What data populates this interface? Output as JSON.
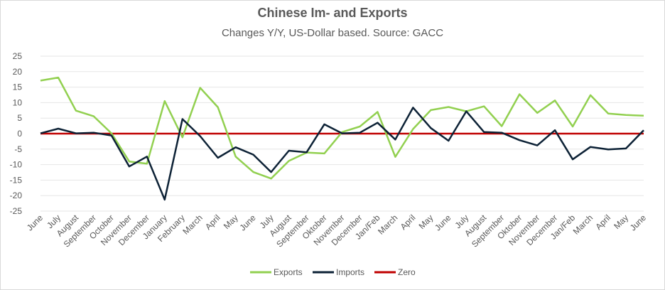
{
  "chart_data": {
    "type": "line",
    "title": "Chinese Im- and Exports",
    "subtitle": "Changes Y/Y, US-Dollar based. Source: GACC",
    "xlabel": "",
    "ylabel": "",
    "ylim": [
      -25,
      25
    ],
    "yticks": [
      25,
      20,
      15,
      10,
      5,
      0,
      -5,
      -10,
      -15,
      -20,
      -25
    ],
    "grid": "horizontal",
    "legend_position": "bottom",
    "categories": [
      "June",
      "July",
      "August",
      "September",
      "October",
      "November",
      "December",
      "January",
      "February",
      "March",
      "April",
      "May",
      "June",
      "July",
      "August",
      "September",
      "Oktober",
      "November",
      "December",
      "Jan/Feb",
      "March",
      "April",
      "May",
      "June",
      "July",
      "August",
      "September",
      "Oktober",
      "November",
      "December",
      "Jan/Feb",
      "March",
      "April",
      "May",
      "June"
    ],
    "series": [
      {
        "name": "Exports",
        "color": "#92d050",
        "values": [
          17.1,
          18.1,
          7.4,
          5.6,
          0.1,
          -9.0,
          -9.7,
          10.5,
          -1.2,
          14.8,
          8.5,
          -7.4,
          -12.4,
          -14.5,
          -8.8,
          -6.1,
          -6.4,
          0.5,
          2.3,
          7.0,
          -7.5,
          1.5,
          7.6,
          8.6,
          7.2,
          8.8,
          2.4,
          12.7,
          6.7,
          10.7,
          2.3,
          12.4,
          6.5,
          6.0,
          5.8
        ]
      },
      {
        "name": "Imports",
        "color": "#0d2236",
        "values": [
          0.1,
          1.6,
          0.1,
          0.3,
          -0.6,
          -10.6,
          -7.4,
          -21.3,
          4.7,
          -0.8,
          -7.8,
          -4.4,
          -6.8,
          -12.4,
          -5.5,
          -6.0,
          3.0,
          0.1,
          0.3,
          3.5,
          -1.9,
          8.4,
          1.8,
          -2.3,
          7.2,
          0.5,
          0.3,
          -2.1,
          -3.8,
          1.1,
          -8.3,
          -4.3,
          -5.1,
          -4.8,
          1.1
        ]
      },
      {
        "name": "Zero",
        "color": "#c00000",
        "values": [
          0,
          0,
          0,
          0,
          0,
          0,
          0,
          0,
          0,
          0,
          0,
          0,
          0,
          0,
          0,
          0,
          0,
          0,
          0,
          0,
          0,
          0,
          0,
          0,
          0,
          0,
          0,
          0,
          0,
          0,
          0,
          0,
          0,
          0,
          0
        ]
      }
    ]
  }
}
